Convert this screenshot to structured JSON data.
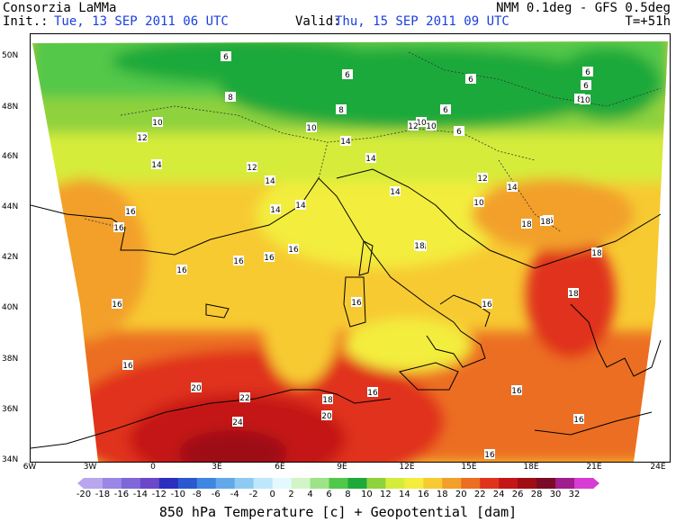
{
  "header": {
    "org": "Consorzia LaMMa",
    "model": "NMM 0.1deg - GFS 0.5deg",
    "init_label": "Init.:",
    "init_value": "Tue, 13 SEP 2011  06 UTC",
    "valid_label": "Valid:",
    "valid_value": "Thu, 15 SEP 2011  09 UTC",
    "lead": "T=+51h"
  },
  "axes": {
    "lat_ticks": [
      "50N",
      "48N",
      "46N",
      "44N",
      "42N",
      "40N",
      "38N",
      "36N",
      "34N"
    ],
    "lon_ticks": [
      "6W",
      "3W",
      "0",
      "3E",
      "6E",
      "9E",
      "12E",
      "15E",
      "18E",
      "21E",
      "24E"
    ]
  },
  "colorbar": {
    "labels": [
      "-20",
      "-18",
      "-16",
      "-14",
      "-12",
      "-10",
      "-8",
      "-6",
      "-4",
      "-2",
      "0",
      "2",
      "4",
      "6",
      "8",
      "10",
      "12",
      "14",
      "16",
      "18",
      "20",
      "22",
      "24",
      "26",
      "28",
      "30",
      "32"
    ],
    "colors": [
      "#b9a6ee",
      "#9a86e4",
      "#7f67d8",
      "#6a48c9",
      "#2c2ec0",
      "#2a58cf",
      "#3f86e0",
      "#63a9ea",
      "#8fcaf3",
      "#bfe7fb",
      "#e4f9ff",
      "#d2f4c6",
      "#9de489",
      "#52c84a",
      "#1ea93b",
      "#8ed23c",
      "#d6ec3a",
      "#f3ed3c",
      "#f7ca32",
      "#f2a02a",
      "#ec6e21",
      "#e0331b",
      "#c41517",
      "#9e0d13",
      "#7a0b27",
      "#9f1d8c",
      "#d83cd2"
    ]
  },
  "contour_labels": [
    "6",
    "6",
    "6",
    "6",
    "6",
    "6",
    "6",
    "8",
    "8",
    "8",
    "10",
    "10",
    "10",
    "10",
    "10",
    "10",
    "12",
    "12",
    "12",
    "12",
    "14",
    "14",
    "14",
    "14",
    "14",
    "14",
    "14",
    "14",
    "14",
    "16",
    "16",
    "16",
    "16",
    "16",
    "16",
    "16",
    "16",
    "16",
    "16",
    "16",
    "16",
    "16",
    "16",
    "16",
    "18",
    "18",
    "18",
    "18",
    "18",
    "18",
    "20",
    "20",
    "22",
    "24"
  ],
  "caption": "850 hPa Temperature [c] + Geopotential [dam]"
}
